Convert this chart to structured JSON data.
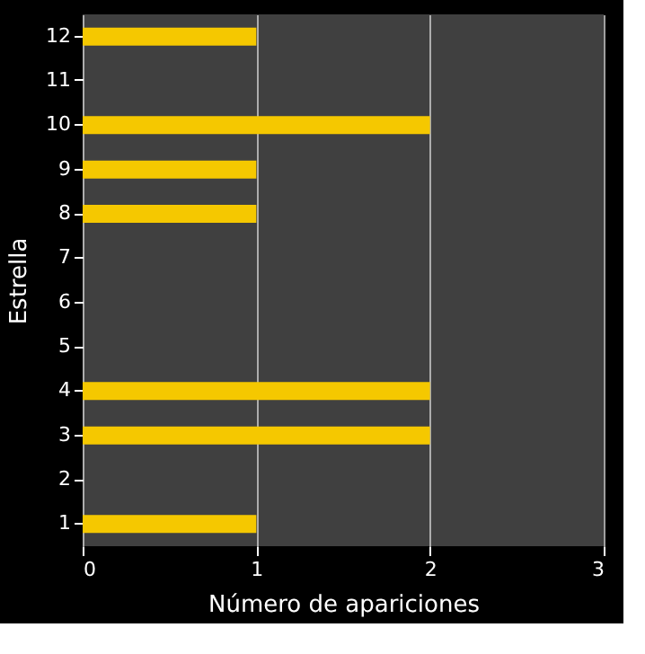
{
  "chart_data": {
    "type": "bar",
    "orientation": "horizontal",
    "categories": [
      "12",
      "11",
      "10",
      "9",
      "8",
      "7",
      "6",
      "5",
      "4",
      "3",
      "2",
      "1"
    ],
    "values": [
      1,
      0,
      2,
      1,
      1,
      0,
      0,
      0,
      2,
      2,
      0,
      1
    ],
    "color": "#f5c800",
    "xlim": [
      0,
      3
    ],
    "xticks": [
      0,
      1,
      2,
      3
    ],
    "xlabel": "Número  de apariciones",
    "ylabel": "Estrella",
    "grid": "x"
  }
}
